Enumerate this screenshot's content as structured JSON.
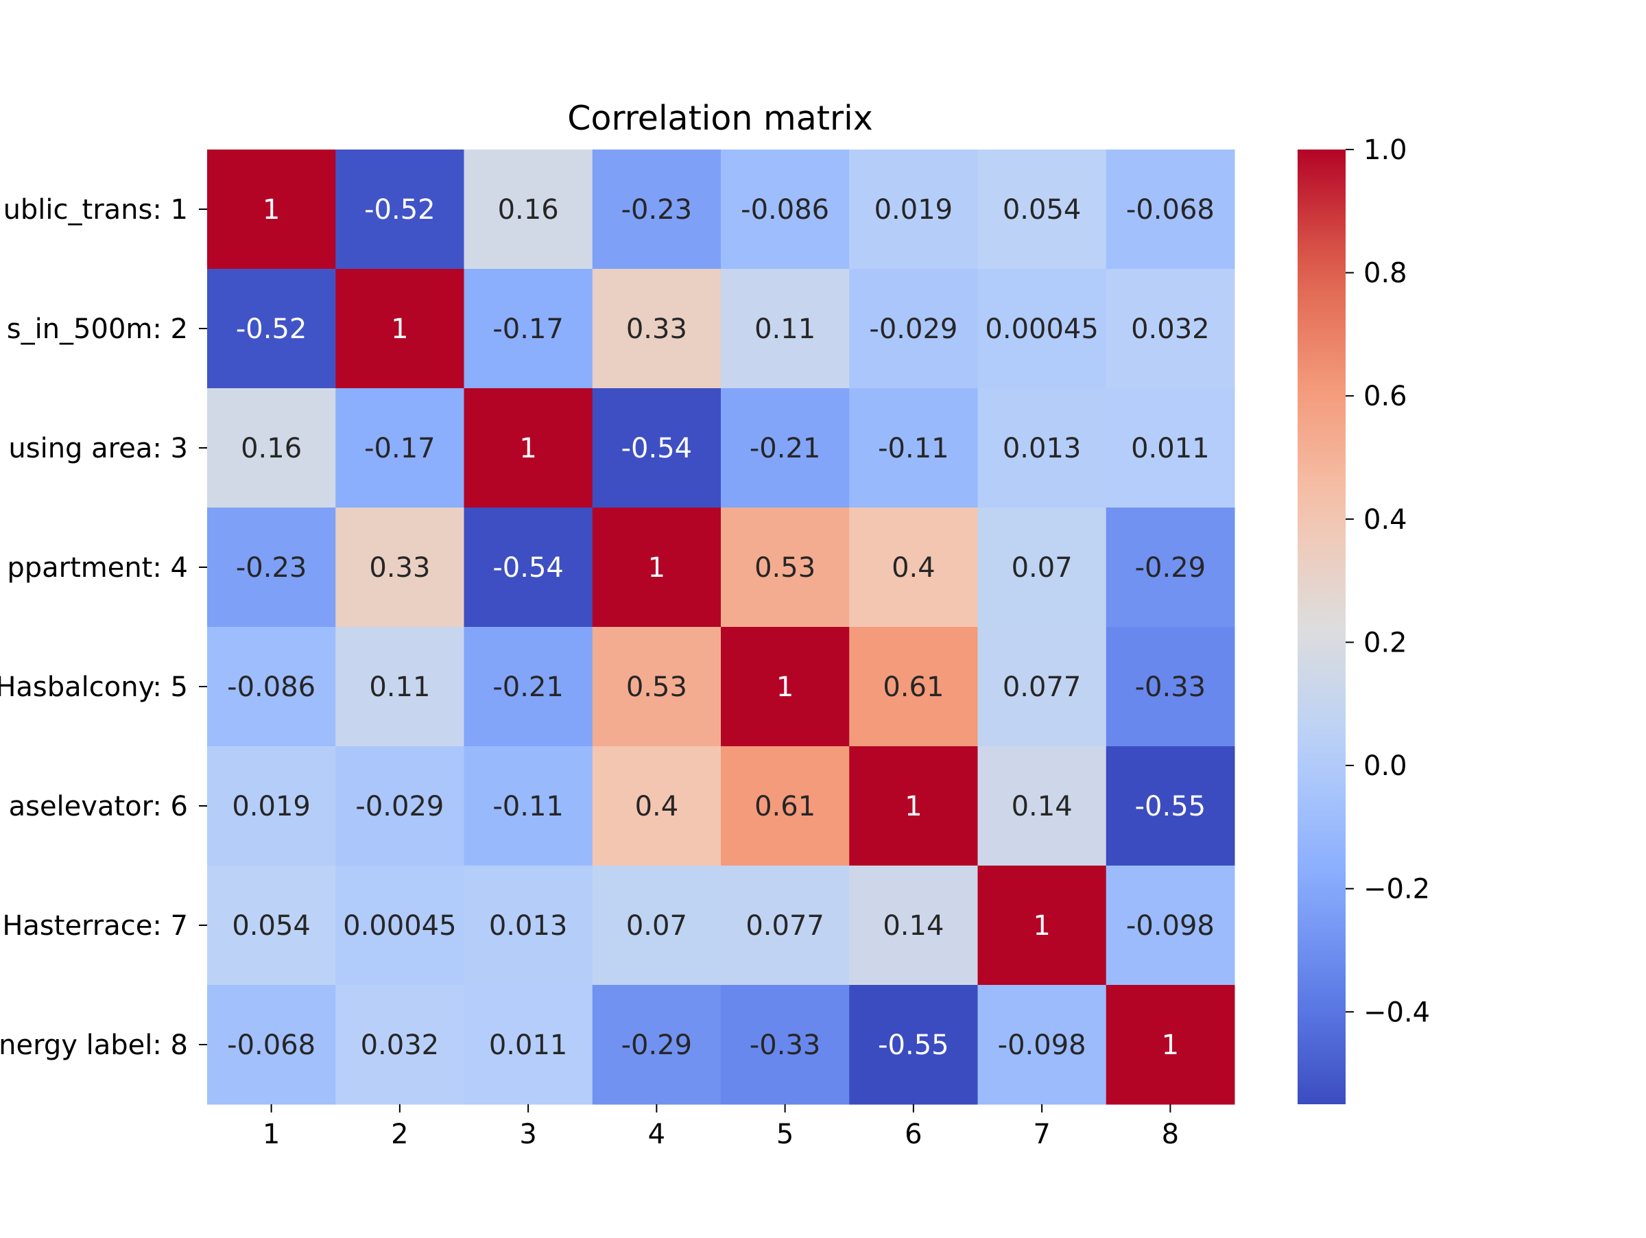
{
  "chart_data": {
    "type": "heatmap",
    "title": "Correlation matrix",
    "xlabel": "",
    "ylabel": "",
    "x_tick_labels": [
      "1",
      "2",
      "3",
      "4",
      "5",
      "6",
      "7",
      "8"
    ],
    "y_tick_labels": [
      "ublic_trans: 1",
      "s_in_500m: 2",
      "using area: 3",
      "ppartment: 4",
      "Hasbalcony: 5",
      "aselevator: 6",
      "Hasterrace: 7",
      "nergy label: 8"
    ],
    "matrix": [
      [
        1,
        -0.52,
        0.16,
        -0.23,
        -0.086,
        0.019,
        0.054,
        -0.068
      ],
      [
        -0.52,
        1,
        -0.17,
        0.33,
        0.11,
        -0.029,
        0.00045,
        0.032
      ],
      [
        0.16,
        -0.17,
        1,
        -0.54,
        -0.21,
        -0.11,
        0.013,
        0.011
      ],
      [
        -0.23,
        0.33,
        -0.54,
        1,
        0.53,
        0.4,
        0.07,
        -0.29
      ],
      [
        -0.086,
        0.11,
        -0.21,
        0.53,
        1,
        0.61,
        0.077,
        -0.33
      ],
      [
        0.019,
        -0.029,
        -0.11,
        0.4,
        0.61,
        1,
        0.14,
        -0.55
      ],
      [
        0.054,
        0.00045,
        0.013,
        0.07,
        0.077,
        0.14,
        1,
        -0.098
      ],
      [
        -0.068,
        0.032,
        0.011,
        -0.29,
        -0.33,
        -0.55,
        -0.098,
        1
      ]
    ],
    "cell_labels": [
      [
        "1",
        "-0.52",
        "0.16",
        "-0.23",
        "-0.086",
        "0.019",
        "0.054",
        "-0.068"
      ],
      [
        "-0.52",
        "1",
        "-0.17",
        "0.33",
        "0.11",
        "-0.029",
        "0.00045",
        "0.032"
      ],
      [
        "0.16",
        "-0.17",
        "1",
        "-0.54",
        "-0.21",
        "-0.11",
        "0.013",
        "0.011"
      ],
      [
        "-0.23",
        "0.33",
        "-0.54",
        "1",
        "0.53",
        "0.4",
        "0.07",
        "-0.29"
      ],
      [
        "-0.086",
        "0.11",
        "-0.21",
        "0.53",
        "1",
        "0.61",
        "0.077",
        "-0.33"
      ],
      [
        "0.019",
        "-0.029",
        "-0.11",
        "0.4",
        "0.61",
        "1",
        "0.14",
        "-0.55"
      ],
      [
        "0.054",
        "0.00045",
        "0.013",
        "0.07",
        "0.077",
        "0.14",
        "1",
        "-0.098"
      ],
      [
        "-0.068",
        "0.032",
        "0.011",
        "-0.29",
        "-0.33",
        "-0.55",
        "-0.098",
        "1"
      ]
    ],
    "colormap": "coolwarm",
    "vmin": -0.55,
    "vmax": 1.0,
    "colorbar_ticks": [
      1.0,
      0.8,
      0.6,
      0.4,
      0.2,
      0.0,
      -0.2,
      -0.4
    ],
    "colorbar_tick_labels": [
      "1.0",
      "0.8",
      "0.6",
      "0.4",
      "0.2",
      "0.0",
      "−0.2",
      "−0.4"
    ],
    "grid": false,
    "colors": {
      "text_light": "#ffffff",
      "text_dark": "#262626",
      "axis": "#000000"
    }
  }
}
